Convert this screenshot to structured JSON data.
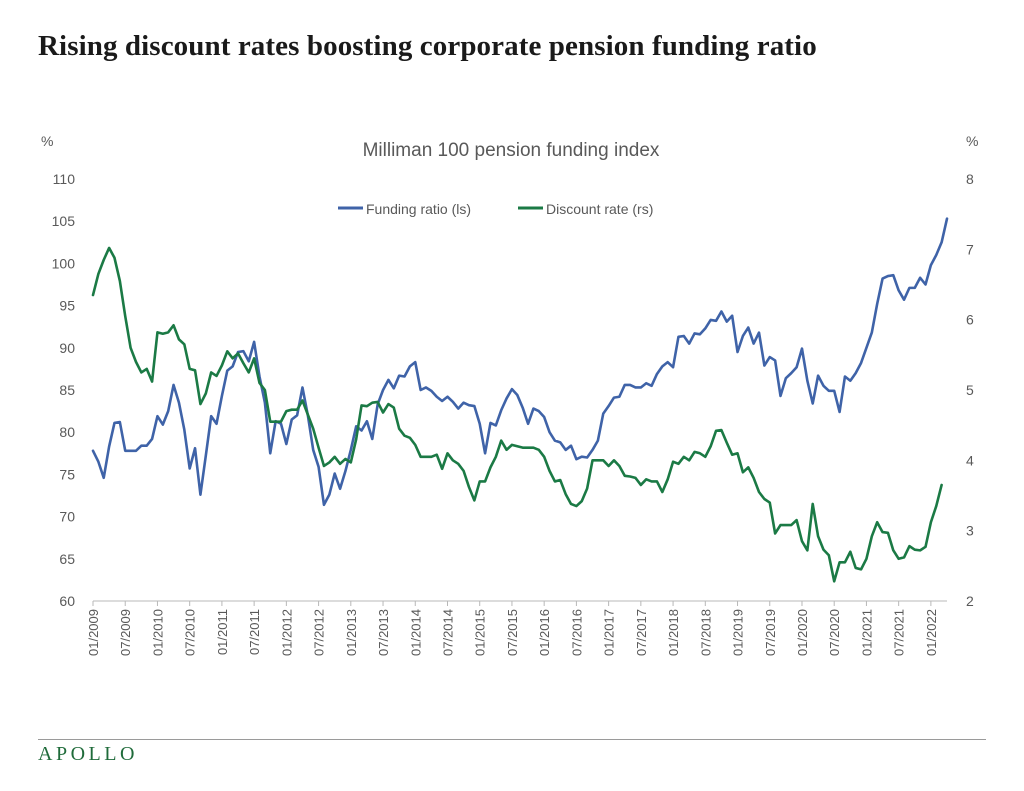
{
  "title": "Rising discount rates boosting corporate pension funding ratio",
  "brand": "APOLLO",
  "colors": {
    "funding": "#3f63a8",
    "discount": "#1b7a45",
    "axis": "#b8b8b8",
    "text": "#595959"
  },
  "chart_data": {
    "type": "line",
    "title": "Milliman 100 pension funding index",
    "left_axis_unit": "%",
    "right_axis_unit": "%",
    "ylim_left": [
      60,
      110
    ],
    "ylim_right": [
      2,
      8
    ],
    "yticks_left": [
      "60",
      "65",
      "70",
      "75",
      "80",
      "85",
      "90",
      "95",
      "100",
      "105",
      "110"
    ],
    "yticks_right": [
      "2",
      "3",
      "4",
      "5",
      "6",
      "7",
      "8"
    ],
    "xtick_labels": [
      "01/2009",
      "07/2009",
      "01/2010",
      "07/2010",
      "01/2011",
      "07/2011",
      "01/2012",
      "07/2012",
      "01/2013",
      "07/2013",
      "01/2014",
      "07/2014",
      "01/2015",
      "07/2015",
      "01/2016",
      "07/2016",
      "01/2017",
      "07/2017",
      "01/2018",
      "07/2018",
      "01/2019",
      "07/2019",
      "01/2020",
      "07/2020",
      "01/2021",
      "07/2021",
      "01/2022"
    ],
    "x_start": "01/2009",
    "x_end": "04/2022",
    "grid": false,
    "legend_position": "top-center",
    "series": [
      {
        "name": "Funding ratio (ls)",
        "axis": "left",
        "color": "#3f63a8",
        "values": [
          77.8,
          76.5,
          74.6,
          78.3,
          81.1,
          81.2,
          77.8,
          77.8,
          77.8,
          78.4,
          78.4,
          79.2,
          81.9,
          80.9,
          82.5,
          85.6,
          83.5,
          80.3,
          75.7,
          78.1,
          72.6,
          77.2,
          81.9,
          81.0,
          84.3,
          87.3,
          87.8,
          89.5,
          89.6,
          88.4,
          90.7,
          86.6,
          83.5,
          77.5,
          81.3,
          81.0,
          78.6,
          81.5,
          82.0,
          85.3,
          82.0,
          77.9,
          75.9,
          71.4,
          72.6,
          75.1,
          73.3,
          75.4,
          77.9,
          80.7,
          80.2,
          81.3,
          79.2,
          83.3,
          85.0,
          86.2,
          85.2,
          86.7,
          86.6,
          87.8,
          88.3,
          85.0,
          85.3,
          84.9,
          84.2,
          83.7,
          84.2,
          83.6,
          82.8,
          83.5,
          83.2,
          83.1,
          81.0,
          77.5,
          81.1,
          80.8,
          82.6,
          84.0,
          85.1,
          84.4,
          82.9,
          81.0,
          82.8,
          82.5,
          81.8,
          80.0,
          79.0,
          78.8,
          77.9,
          78.4,
          76.8,
          77.1,
          77.0,
          77.9,
          79.0,
          82.2,
          83.1,
          84.1,
          84.2,
          85.6,
          85.6,
          85.3,
          85.3,
          85.8,
          85.5,
          86.9,
          87.8,
          88.3,
          87.7,
          91.3,
          91.4,
          90.5,
          91.7,
          91.6,
          92.3,
          93.3,
          93.2,
          94.3,
          93.1,
          93.8,
          89.5,
          91.4,
          92.4,
          90.5,
          91.8,
          87.9,
          88.9,
          88.5,
          84.3,
          86.4,
          87.0,
          87.7,
          89.9,
          86.1,
          83.4,
          86.7,
          85.5,
          84.9,
          84.9,
          82.4,
          86.6,
          86.1,
          87.0,
          88.2,
          90.0,
          91.8,
          95.2,
          98.2,
          98.5,
          98.6,
          96.8,
          95.7,
          97.1,
          97.1,
          98.3,
          97.5,
          99.8,
          101.0,
          102.5,
          105.3
        ]
      },
      {
        "name": "Discount rate (rs)",
        "axis": "right",
        "color": "#1b7a45",
        "values": [
          6.35,
          6.65,
          6.85,
          7.02,
          6.88,
          6.55,
          6.05,
          5.6,
          5.4,
          5.25,
          5.3,
          5.12,
          5.82,
          5.8,
          5.82,
          5.92,
          5.72,
          5.65,
          5.3,
          5.28,
          4.8,
          4.95,
          5.25,
          5.2,
          5.35,
          5.55,
          5.45,
          5.52,
          5.38,
          5.25,
          5.45,
          5.1,
          5.0,
          4.55,
          4.55,
          4.55,
          4.7,
          4.72,
          4.72,
          4.85,
          4.65,
          4.45,
          4.18,
          3.92,
          3.97,
          4.05,
          3.95,
          4.02,
          3.97,
          4.3,
          4.78,
          4.77,
          4.82,
          4.83,
          4.68,
          4.8,
          4.75,
          4.45,
          4.35,
          4.32,
          4.22,
          4.05,
          4.05,
          4.05,
          4.08,
          3.88,
          4.1,
          4.0,
          3.95,
          3.85,
          3.62,
          3.43,
          3.7,
          3.7,
          3.9,
          4.05,
          4.28,
          4.15,
          4.22,
          4.2,
          4.18,
          4.18,
          4.18,
          4.15,
          4.05,
          3.85,
          3.7,
          3.72,
          3.52,
          3.38,
          3.35,
          3.42,
          3.6,
          4.0,
          4.0,
          4.0,
          3.92,
          4.0,
          3.92,
          3.78,
          3.77,
          3.75,
          3.65,
          3.73,
          3.7,
          3.7,
          3.55,
          3.73,
          3.98,
          3.95,
          4.05,
          4.0,
          4.12,
          4.1,
          4.05,
          4.2,
          4.42,
          4.43,
          4.25,
          4.08,
          4.1,
          3.83,
          3.9,
          3.75,
          3.55,
          3.45,
          3.4,
          2.96,
          3.08,
          3.08,
          3.08,
          3.15,
          2.85,
          2.72,
          3.38,
          2.92,
          2.73,
          2.65,
          2.28,
          2.55,
          2.55,
          2.7,
          2.47,
          2.45,
          2.6,
          2.92,
          3.12,
          2.98,
          2.97,
          2.72,
          2.6,
          2.62,
          2.78,
          2.73,
          2.72,
          2.77,
          3.12,
          3.35,
          3.65
        ]
      }
    ]
  }
}
